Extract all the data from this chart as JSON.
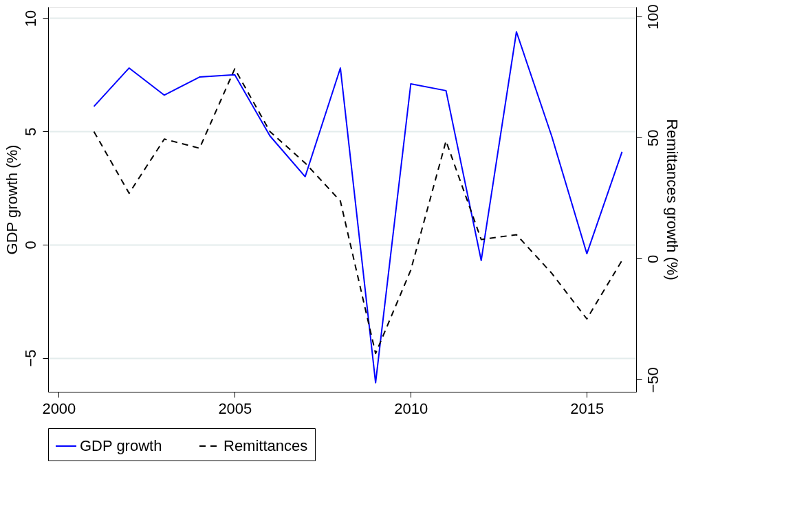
{
  "chart_data": {
    "type": "line",
    "ylabel": "GDP growth (%)",
    "y2label": "Remittances growth (%)",
    "x": [
      2001,
      2002,
      2003,
      2004,
      2005,
      2006,
      2007,
      2008,
      2009,
      2010,
      2011,
      2012,
      2013,
      2014,
      2015,
      2016
    ],
    "xlim": [
      1999.7,
      2016.4
    ],
    "xticks": [
      2000,
      2005,
      2010,
      2015
    ],
    "ylim": [
      -6.5,
      10.5
    ],
    "yticks": [
      -5,
      0,
      5,
      10
    ],
    "y2lim": [
      -55,
      104
    ],
    "y2ticks": [
      -50,
      0,
      50,
      100
    ],
    "grid": "y",
    "legend": "bottom",
    "marker": "none",
    "series": [
      {
        "name": "GDP growth",
        "color": "#0000ff",
        "line_style": "solid",
        "values": [
          6.1,
          7.8,
          6.6,
          7.4,
          7.5,
          4.8,
          3.0,
          7.8,
          -6.1,
          7.1,
          6.8,
          -0.7,
          9.4,
          4.8,
          -0.4,
          4.1
        ]
      },
      {
        "name": "Remittances",
        "color": "#000000",
        "line_style": "dashed",
        "axis": "y2",
        "values": [
          52.5,
          27,
          49.4,
          45.6,
          78.4,
          52.5,
          39.5,
          23.8,
          -39.2,
          -4.7,
          48.6,
          7.9,
          9.9,
          -6.0,
          -24.9,
          -0.7
        ]
      }
    ]
  }
}
